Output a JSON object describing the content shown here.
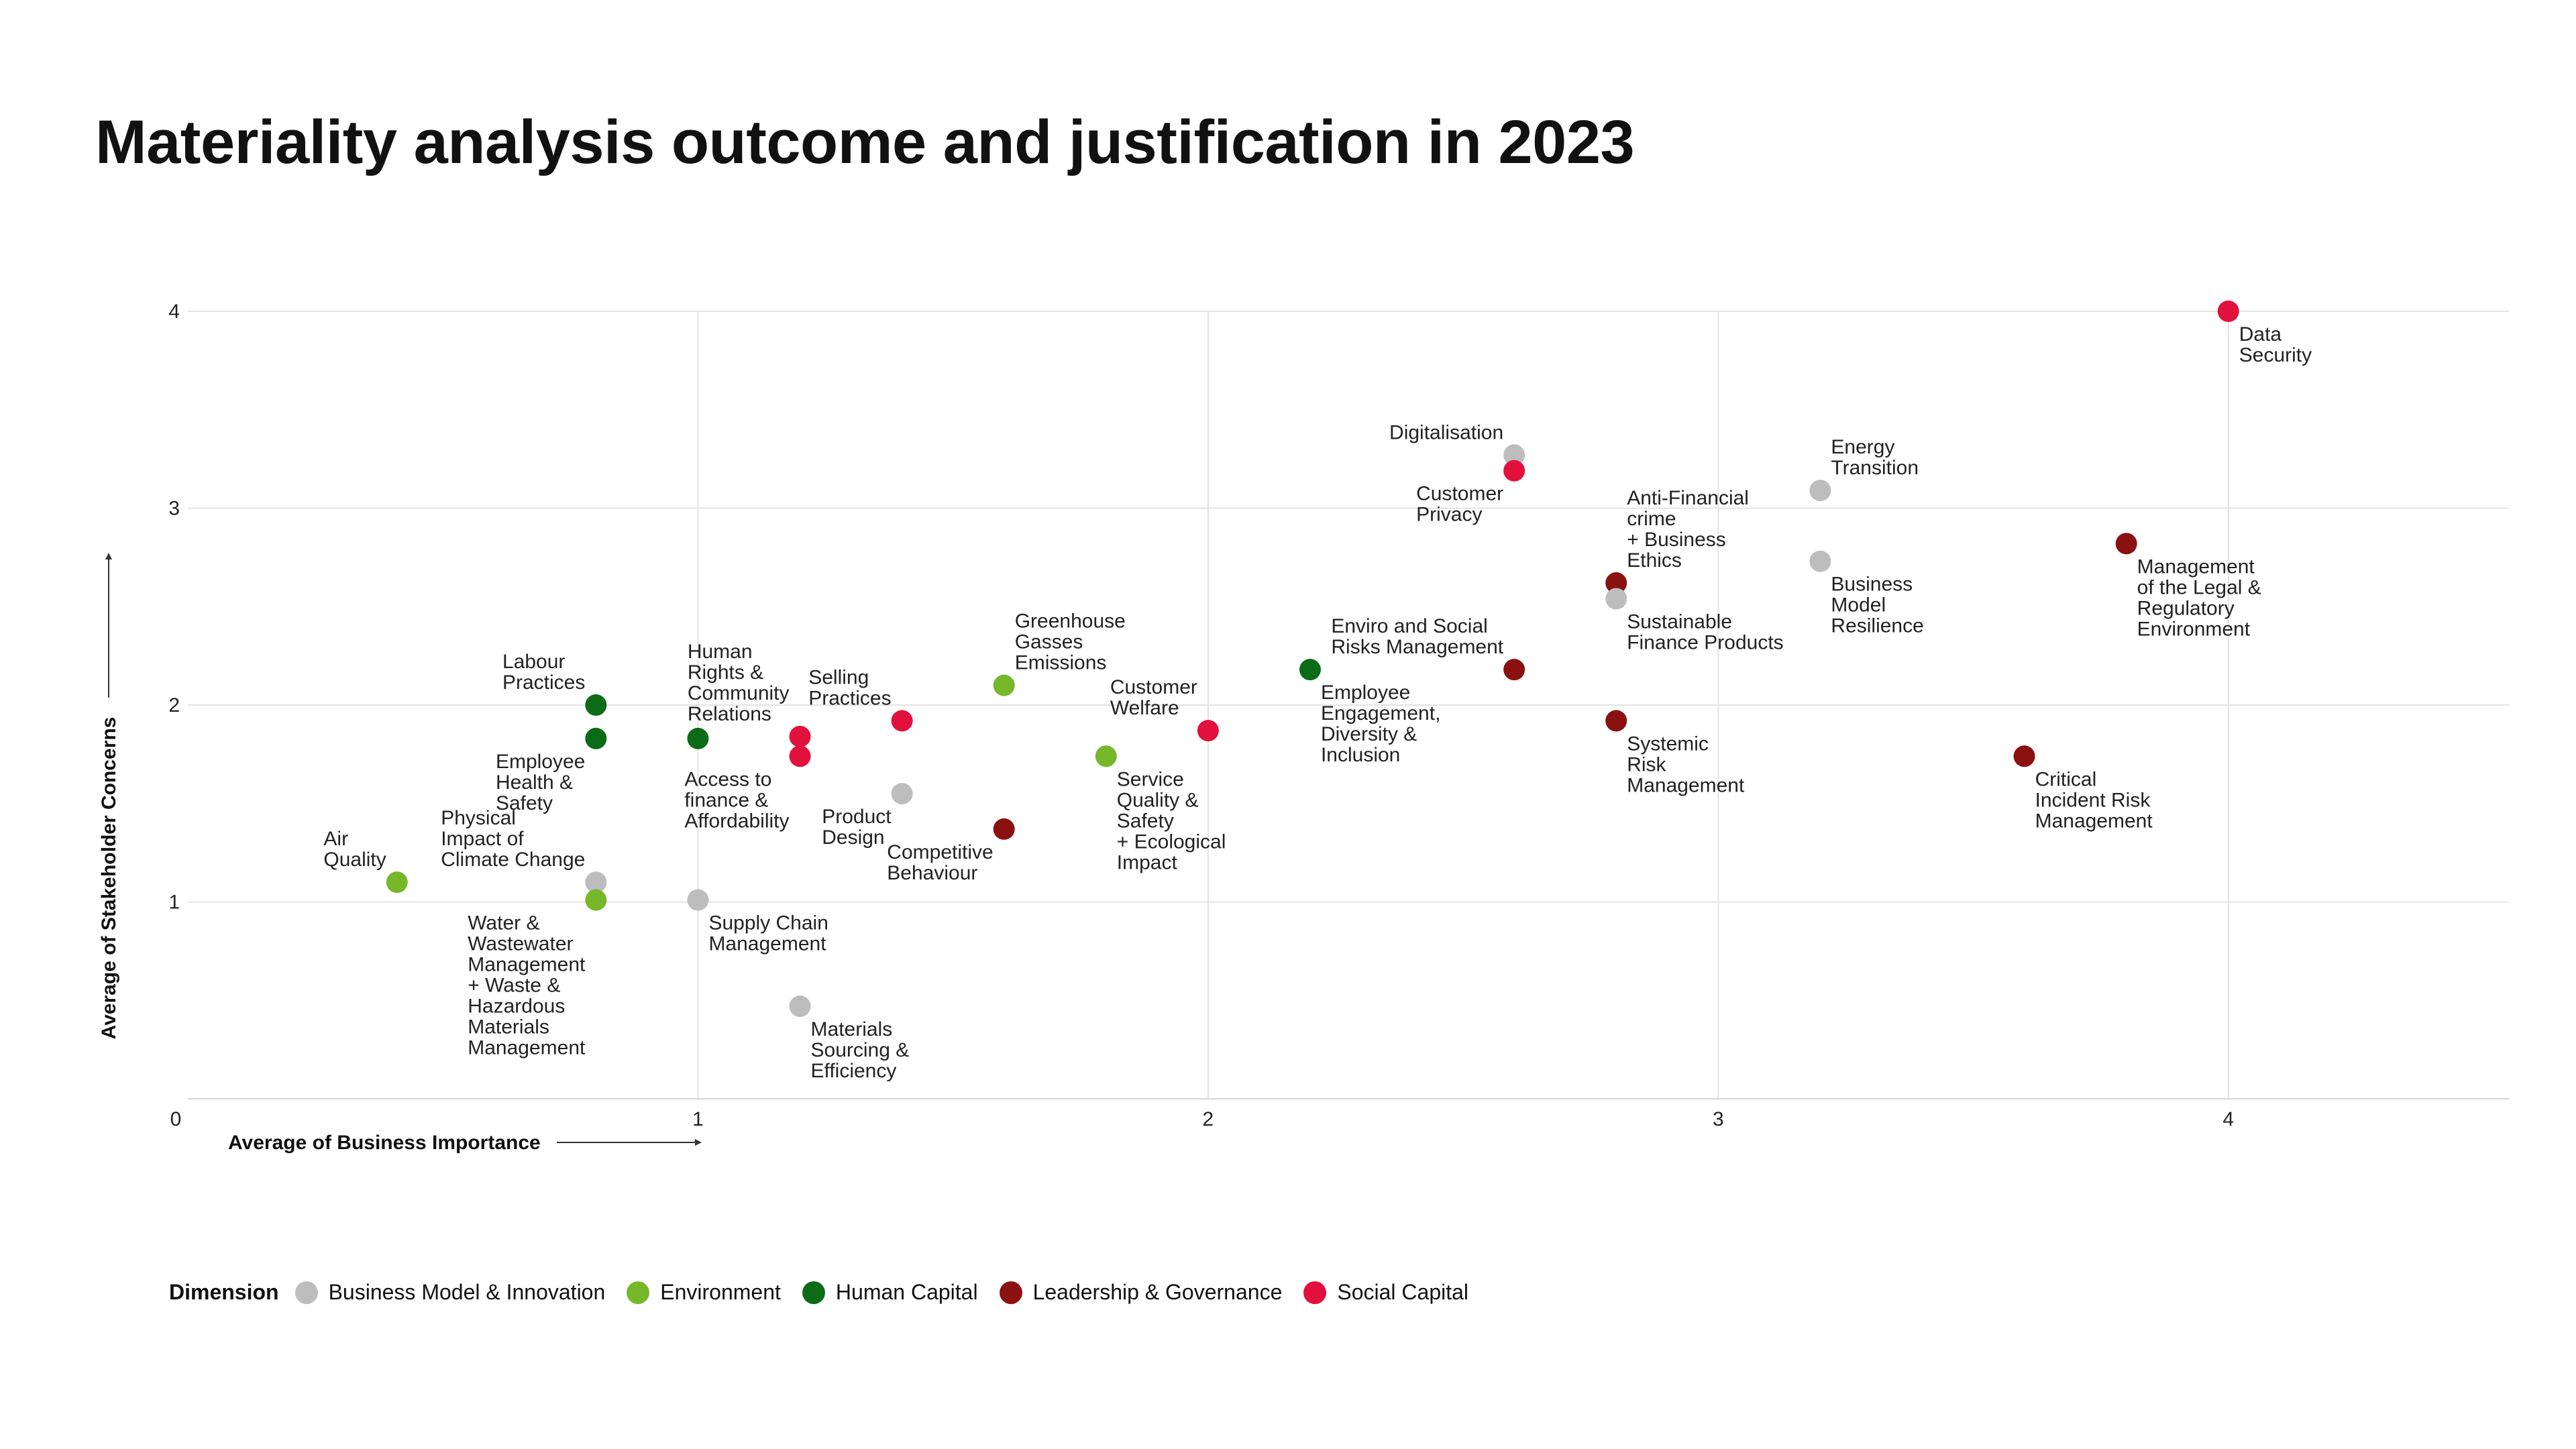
{
  "title": "Materiality analysis outcome and justification in 2023",
  "legend": {
    "title": "Dimension",
    "items": [
      {
        "label": "Business Model & Innovation",
        "color": "#bdbdbd"
      },
      {
        "label": "Environment",
        "color": "#76b82a"
      },
      {
        "label": "Human Capital",
        "color": "#0b6b17"
      },
      {
        "label": "Leadership & Governance",
        "color": "#8b1010"
      },
      {
        "label": "Social Capital",
        "color": "#e2103c"
      }
    ]
  },
  "chart_data": {
    "type": "scatter",
    "title": "Materiality analysis outcome and justification in 2023",
    "xlabel": "Average of Business Importance",
    "ylabel": "Average of Stakeholder Concerns",
    "xlim": [
      0,
      4.55
    ],
    "ylim": [
      0,
      4
    ],
    "xticks": [
      "0",
      "1",
      "2",
      "3",
      "4"
    ],
    "yticks": [
      "1",
      "2",
      "3",
      "4"
    ],
    "grid": true,
    "legend_position": "bottom",
    "points": [
      {
        "label": "Data\nSecurity",
        "x": 4.0,
        "y": 4.0,
        "dimension": "Social Capital",
        "pos": "br"
      },
      {
        "label": "Digitalisation",
        "x": 2.6,
        "y": 3.27,
        "dimension": "Business Model & Innovation",
        "pos": "tl"
      },
      {
        "label": "Customer\nPrivacy",
        "x": 2.6,
        "y": 3.19,
        "dimension": "Social Capital",
        "pos": "bl"
      },
      {
        "label": "Energy\nTransition",
        "x": 3.2,
        "y": 3.09,
        "dimension": "Business Model & Innovation",
        "pos": "tr"
      },
      {
        "label": "Business\nModel\nResilience",
        "x": 3.2,
        "y": 2.73,
        "dimension": "Business Model & Innovation",
        "pos": "br"
      },
      {
        "label": "Management\nof the Legal &\nRegulatory\nEnvironment",
        "x": 3.8,
        "y": 2.82,
        "dimension": "Leadership & Governance",
        "pos": "br"
      },
      {
        "label": "Anti-Financial\ncrime\n+ Business\nEthics",
        "x": 2.8,
        "y": 2.62,
        "dimension": "Leadership & Governance",
        "pos": "tr"
      },
      {
        "label": "Sustainable\nFinance Products",
        "x": 2.8,
        "y": 2.54,
        "dimension": "Business Model & Innovation",
        "pos": "br"
      },
      {
        "label": "Enviro and Social\nRisks Management",
        "x": 2.6,
        "y": 2.18,
        "dimension": "Leadership & Governance",
        "pos": "tl"
      },
      {
        "label": "Systemic\nRisk\nManagement",
        "x": 2.8,
        "y": 1.92,
        "dimension": "Leadership & Governance",
        "pos": "br"
      },
      {
        "label": "Critical\nIncident Risk\nManagement",
        "x": 3.6,
        "y": 1.74,
        "dimension": "Leadership & Governance",
        "pos": "br"
      },
      {
        "label": "Employee\nEngagement,\nDiversity &\nInclusion",
        "x": 2.2,
        "y": 2.18,
        "dimension": "Human Capital",
        "pos": "br"
      },
      {
        "label": "Customer\nWelfare",
        "x": 2.0,
        "y": 1.87,
        "dimension": "Social Capital",
        "pos": "tl"
      },
      {
        "label": "Service\nQuality &\nSafety\n+ Ecological\nImpact",
        "x": 1.8,
        "y": 1.74,
        "dimension": "Environment",
        "pos": "br"
      },
      {
        "label": "Greenhouse\nGasses\nEmissions",
        "x": 1.6,
        "y": 2.1,
        "dimension": "Environment",
        "pos": "tr"
      },
      {
        "label": "Competitive\nBehaviour",
        "x": 1.6,
        "y": 1.37,
        "dimension": "Leadership & Governance",
        "pos": "bl"
      },
      {
        "label": "Selling\nPractices",
        "x": 1.4,
        "y": 1.92,
        "dimension": "Social Capital",
        "pos": "tl"
      },
      {
        "label": "Product\nDesign",
        "x": 1.4,
        "y": 1.55,
        "dimension": "Business Model & Innovation",
        "pos": "bl"
      },
      {
        "label": "Human\nRights &\nCommunity\nRelations",
        "x": 1.2,
        "y": 1.84,
        "dimension": "Social Capital",
        "pos": "tl"
      },
      {
        "label": "Access to\nfinance &\nAffordability",
        "x": 1.2,
        "y": 1.74,
        "dimension": "Social Capital",
        "pos": "bl"
      },
      {
        "label": "Materials\nSourcing &\nEfficiency",
        "x": 1.2,
        "y": 0.47,
        "dimension": "Business Model & Innovation",
        "pos": "br"
      },
      {
        "label": "Supply Chain\nManagement",
        "x": 1.0,
        "y": 1.01,
        "dimension": "Business Model & Innovation",
        "pos": "br"
      },
      {
        "label": "",
        "x": 1.0,
        "y": 1.83,
        "dimension": "Human Capital",
        "pos": "br"
      },
      {
        "label": "Labour\nPractices",
        "x": 0.8,
        "y": 2.0,
        "dimension": "Human Capital",
        "pos": "tl"
      },
      {
        "label": "Employee\nHealth &\nSafety",
        "x": 0.8,
        "y": 1.83,
        "dimension": "Human Capital",
        "pos": "bl"
      },
      {
        "label": "Physical\nImpact of\nClimate Change",
        "x": 0.8,
        "y": 1.1,
        "dimension": "Business Model & Innovation",
        "pos": "tl"
      },
      {
        "label": "Water &\nWastewater\nManagement\n+ Waste &\nHazardous\nMaterials\nManagement",
        "x": 0.8,
        "y": 1.01,
        "dimension": "Environment",
        "pos": "bl"
      },
      {
        "label": "Air\nQuality",
        "x": 0.41,
        "y": 1.1,
        "dimension": "Environment",
        "pos": "tl"
      }
    ]
  }
}
